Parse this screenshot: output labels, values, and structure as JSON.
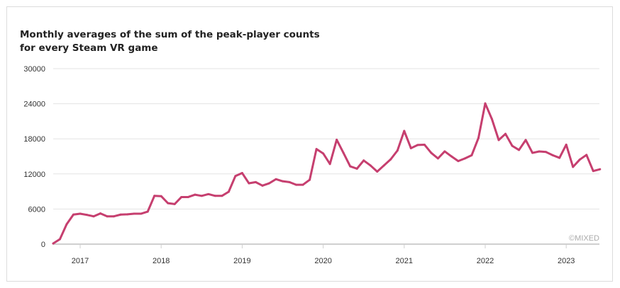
{
  "chart_data": {
    "type": "line",
    "title_lines": [
      "Monthly averages of the sum of the peak-player counts",
      "for every Steam VR game"
    ],
    "xlabel": "",
    "ylabel": "",
    "ylim": [
      0,
      30000
    ],
    "yticks": [
      0,
      6000,
      12000,
      18000,
      24000,
      30000
    ],
    "yticks_labels": [
      "0",
      "6000",
      "12000",
      "18000",
      "24000",
      "30000"
    ],
    "xticks": [
      "2017",
      "2018",
      "2019",
      "2020",
      "2021",
      "2022",
      "2023"
    ],
    "grid": true,
    "legend": "none",
    "credit": "©MIXED",
    "line_color": "#c63f6f",
    "x": [
      "2016-09",
      "2016-10",
      "2016-11",
      "2016-12",
      "2017-01",
      "2017-02",
      "2017-03",
      "2017-04",
      "2017-05",
      "2017-06",
      "2017-07",
      "2017-08",
      "2017-09",
      "2017-10",
      "2017-11",
      "2017-12",
      "2018-01",
      "2018-02",
      "2018-03",
      "2018-04",
      "2018-05",
      "2018-06",
      "2018-07",
      "2018-08",
      "2018-09",
      "2018-10",
      "2018-11",
      "2018-12",
      "2019-01",
      "2019-02",
      "2019-03",
      "2019-04",
      "2019-05",
      "2019-06",
      "2019-07",
      "2019-08",
      "2019-09",
      "2019-10",
      "2019-11",
      "2019-12",
      "2020-01",
      "2020-02",
      "2020-03",
      "2020-04",
      "2020-05",
      "2020-06",
      "2020-07",
      "2020-08",
      "2020-09",
      "2020-10",
      "2020-11",
      "2020-12",
      "2021-01",
      "2021-02",
      "2021-03",
      "2021-04",
      "2021-05",
      "2021-06",
      "2021-07",
      "2021-08",
      "2021-09",
      "2021-10",
      "2021-11",
      "2021-12",
      "2022-01",
      "2022-02",
      "2022-03",
      "2022-04",
      "2022-05",
      "2022-06",
      "2022-07",
      "2022-08",
      "2022-09",
      "2022-10",
      "2022-11",
      "2022-12",
      "2023-01",
      "2023-02",
      "2023-03",
      "2023-04",
      "2023-05",
      "2023-06"
    ],
    "y": [
      100,
      850,
      3400,
      5050,
      5200,
      5000,
      4750,
      5250,
      4750,
      4750,
      5050,
      5100,
      5200,
      5200,
      5550,
      8250,
      8200,
      7000,
      6850,
      8050,
      8050,
      8450,
      8250,
      8550,
      8250,
      8250,
      8950,
      11650,
      12150,
      10400,
      10600,
      10000,
      10400,
      11100,
      10750,
      10600,
      10150,
      10150,
      11000,
      16250,
      15500,
      13700,
      17850,
      15600,
      13300,
      12900,
      14300,
      13450,
      12400,
      13450,
      14500,
      16000,
      19350,
      16400,
      16950,
      17000,
      15600,
      14650,
      15850,
      15000,
      14200,
      14650,
      15200,
      18150,
      24050,
      21350,
      17800,
      18850,
      16800,
      16100,
      17800,
      15600,
      15850,
      15750,
      15200,
      14750,
      17000,
      13200,
      14450,
      15250,
      12500,
      12800
    ]
  }
}
